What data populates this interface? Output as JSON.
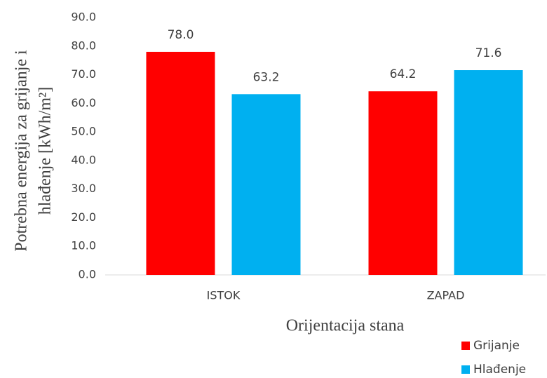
{
  "chart_data": {
    "type": "bar",
    "y_label": [
      "Potrebna energija za grijanje i",
      "hlađenje [kWh/m²]"
    ],
    "x_label": "Orijentacija stana",
    "categories": [
      "ISTOK",
      "ZAPAD"
    ],
    "series": [
      {
        "name": "Grijanje",
        "color": "#ff0000",
        "values": [
          78.0,
          64.2
        ],
        "value_labels": [
          "78.0",
          "64.2"
        ]
      },
      {
        "name": "Hlađenje",
        "color": "#00b0f0",
        "values": [
          63.2,
          71.6
        ],
        "value_labels": [
          "63.2",
          "71.6"
        ]
      }
    ],
    "ylim": [
      0,
      90
    ],
    "yticks": [
      {
        "value": 0,
        "label": "0.0"
      },
      {
        "value": 10,
        "label": "10.0"
      },
      {
        "value": 20,
        "label": "20.0"
      },
      {
        "value": 30,
        "label": "30.0"
      },
      {
        "value": 40,
        "label": "40.0"
      },
      {
        "value": 50,
        "label": "50.0"
      },
      {
        "value": 60,
        "label": "60.0"
      },
      {
        "value": 70,
        "label": "70.0"
      },
      {
        "value": 80,
        "label": "80.0"
      },
      {
        "value": 90,
        "label": "90.0"
      }
    ],
    "grid": false,
    "legend": "bottom-right"
  }
}
